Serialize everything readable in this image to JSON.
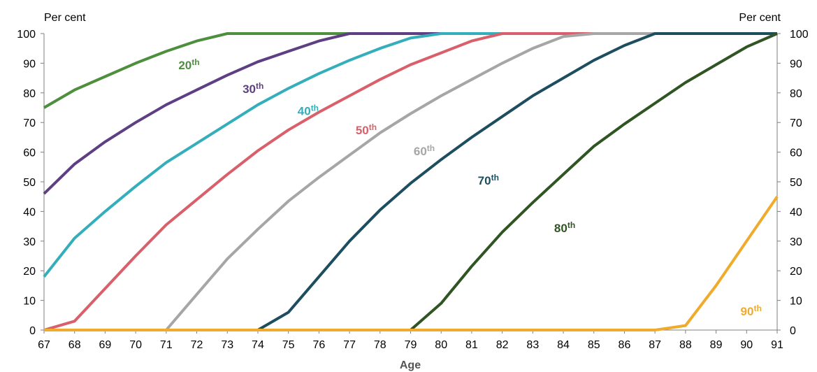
{
  "chart_data": {
    "type": "line",
    "xlabel": "Age",
    "ylabel_left": "Per cent",
    "ylabel_right": "Per cent",
    "x": [
      67,
      68,
      69,
      70,
      71,
      72,
      73,
      74,
      75,
      76,
      77,
      78,
      79,
      80,
      81,
      82,
      83,
      84,
      85,
      86,
      87,
      88,
      89,
      90,
      91
    ],
    "xlim": [
      67,
      91
    ],
    "ylim": [
      0,
      100
    ],
    "yticks": [
      0,
      10,
      20,
      30,
      40,
      50,
      60,
      70,
      80,
      90,
      100
    ],
    "grid": false,
    "series": [
      {
        "name": "20th",
        "color": "#4e8f3e",
        "values": [
          75,
          81,
          85.5,
          90,
          94,
          97.5,
          100,
          100,
          100,
          100,
          100,
          100,
          100,
          100,
          100,
          100,
          100,
          100,
          100,
          100,
          100,
          100,
          100,
          100,
          100
        ]
      },
      {
        "name": "30th",
        "color": "#5e3f84",
        "values": [
          46,
          56,
          63.5,
          70,
          76,
          81,
          86,
          90.5,
          94,
          97.5,
          100,
          100,
          100,
          100,
          100,
          100,
          100,
          100,
          100,
          100,
          100,
          100,
          100,
          100,
          100
        ]
      },
      {
        "name": "40th",
        "color": "#35aebb",
        "values": [
          18,
          31,
          40,
          48.5,
          56.5,
          63,
          69.5,
          76,
          81.5,
          86.5,
          91,
          95,
          98.5,
          100,
          100,
          100,
          100,
          100,
          100,
          100,
          100,
          100,
          100,
          100,
          100
        ]
      },
      {
        "name": "50th",
        "color": "#d9606a",
        "values": [
          0,
          3,
          14,
          25,
          35.5,
          44,
          52.5,
          60.5,
          67.5,
          73.5,
          79,
          84.5,
          89.5,
          93.5,
          97.5,
          100,
          100,
          100,
          100,
          100,
          100,
          100,
          100,
          100,
          100
        ]
      },
      {
        "name": "60th",
        "color": "#a6a6a6",
        "values": [
          null,
          null,
          null,
          null,
          0,
          12,
          24,
          34,
          43.5,
          51.5,
          59,
          66.5,
          73,
          79,
          84.5,
          90,
          95,
          99,
          100,
          100,
          100,
          100,
          100,
          100,
          100
        ]
      },
      {
        "name": "70th",
        "color": "#1d4e5f",
        "values": [
          null,
          null,
          null,
          null,
          null,
          null,
          null,
          0,
          6,
          18,
          30,
          40.5,
          49.5,
          57.5,
          65,
          72,
          79,
          85,
          91,
          96,
          100,
          100,
          100,
          100,
          100
        ]
      },
      {
        "name": "80th",
        "color": "#2f5523",
        "values": [
          null,
          null,
          null,
          null,
          null,
          null,
          null,
          null,
          null,
          null,
          null,
          null,
          0,
          9,
          21.5,
          33,
          43,
          52.5,
          62,
          69.5,
          76.5,
          83.5,
          89.5,
          95.5,
          100
        ]
      },
      {
        "name": "90th",
        "color": "#f0ab2c",
        "values": [
          0,
          0,
          0,
          0,
          0,
          0,
          0,
          0,
          0,
          0,
          0,
          0,
          0,
          0,
          0,
          0,
          0,
          0,
          0,
          0,
          0,
          1.5,
          15,
          30,
          45
        ]
      }
    ],
    "series_labels": [
      {
        "series": "20th",
        "base": "20",
        "suffix": "th",
        "x": 71.4,
        "y": 88
      },
      {
        "series": "30th",
        "base": "30",
        "suffix": "th",
        "x": 73.5,
        "y": 80
      },
      {
        "series": "40th",
        "base": "40",
        "suffix": "th",
        "x": 75.3,
        "y": 72.5
      },
      {
        "series": "50th",
        "base": "50",
        "suffix": "th",
        "x": 77.2,
        "y": 66
      },
      {
        "series": "60th",
        "base": "60",
        "suffix": "th",
        "x": 79.1,
        "y": 59
      },
      {
        "series": "70th",
        "base": "70",
        "suffix": "th",
        "x": 81.2,
        "y": 49
      },
      {
        "series": "80th",
        "base": "80",
        "suffix": "th",
        "x": 83.7,
        "y": 33
      },
      {
        "series": "90th",
        "base": "90",
        "suffix": "th",
        "x": 89.8,
        "y": 5
      }
    ]
  }
}
